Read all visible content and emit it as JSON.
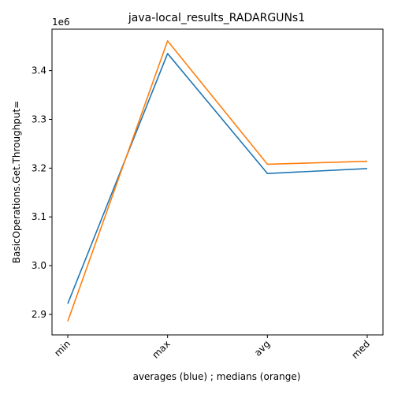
{
  "chart_data": {
    "type": "line",
    "title": "java-local_results_RADARGUNs1",
    "xlabel": "averages (blue) ; medians (orange)",
    "ylabel": "BasicOperations.Get.Throughput=",
    "y_offset_label": "1e6",
    "y_scale": 1000000,
    "categories": [
      "min",
      "max",
      "avg",
      "med"
    ],
    "ylim": [
      2.858,
      3.485
    ],
    "y_ticks": [
      2.9,
      3.0,
      3.1,
      3.2,
      3.3,
      3.4
    ],
    "y_tick_labels": [
      "2.9",
      "3.0",
      "3.1",
      "3.2",
      "3.3",
      "3.4"
    ],
    "grid": false,
    "series": [
      {
        "color": "#1f77b4",
        "values": [
          2.922,
          3.435,
          3.189,
          3.199
        ]
      },
      {
        "color": "#ff7f0e",
        "values": [
          2.886,
          3.461,
          3.208,
          3.214
        ]
      }
    ]
  }
}
